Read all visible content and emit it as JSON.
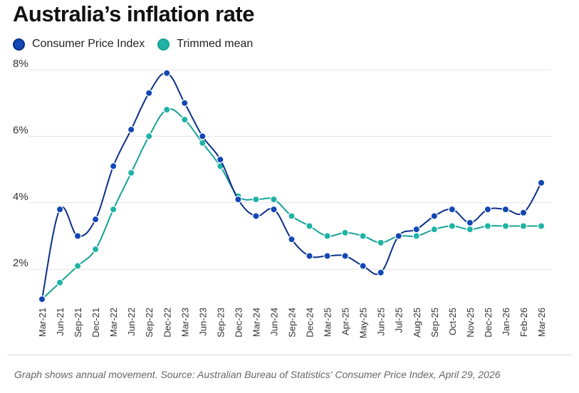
{
  "title": "Australia’s inflation rate",
  "caption": "Graph shows annual movement. Source:  Australian Bureau of Statistics' Consumer Price Index, April 29, 2026",
  "colors": {
    "cpi": "#1247b5",
    "trimmed": "#1fb3a5",
    "cpi_line": "#0b2f8a",
    "trimmed_line": "#16a396",
    "grid": "#e3e3e3"
  },
  "legend": [
    {
      "label": "Consumer Price Index",
      "color": "#1247b5"
    },
    {
      "label": "Trimmed mean",
      "color": "#1fb3a5"
    }
  ],
  "chart_data": {
    "type": "line",
    "title": "Australia’s inflation rate",
    "xlabel": "",
    "ylabel": "",
    "ylim": [
      1,
      8
    ],
    "y_ticks": [
      {
        "value": 2,
        "label": "2%"
      },
      {
        "value": 4,
        "label": "4%"
      },
      {
        "value": 6,
        "label": "6%"
      },
      {
        "value": 8,
        "label": "8%"
      }
    ],
    "grid": true,
    "legend_position": "top-left",
    "categories": [
      "Mar-21",
      "Jun-21",
      "Sep-21",
      "Dec-21",
      "Mar-22",
      "Jun-22",
      "Sep-22",
      "Dec-22",
      "Mar-23",
      "Jun-23",
      "Sep-23",
      "Dec-23",
      "Mar-24",
      "Jun-24",
      "Sep-24",
      "Dec-24",
      "Mar-25",
      "Apr-25",
      "May-25",
      "Jun-25",
      "Jul-25",
      "Aug-25",
      "Sep-25",
      "Oct-25",
      "Nov-25",
      "Dec-25",
      "Jan-26",
      "Feb-26",
      "Mar-26"
    ],
    "series": [
      {
        "name": "Consumer Price Index",
        "values": [
          1.1,
          3.8,
          3.0,
          3.5,
          5.1,
          6.2,
          7.3,
          7.9,
          7.0,
          6.0,
          5.3,
          4.1,
          3.6,
          3.8,
          2.9,
          2.4,
          2.4,
          2.4,
          2.1,
          1.9,
          3.0,
          3.2,
          3.6,
          3.8,
          3.4,
          3.8,
          3.8,
          3.7,
          4.6
        ]
      },
      {
        "name": "Trimmed mean",
        "values": [
          1.1,
          1.6,
          2.1,
          2.6,
          3.8,
          4.9,
          6.0,
          6.8,
          6.5,
          5.8,
          5.1,
          4.2,
          4.1,
          4.1,
          3.6,
          3.3,
          3.0,
          3.1,
          3.0,
          2.8,
          3.0,
          3.0,
          3.2,
          3.3,
          3.2,
          3.3,
          3.3,
          3.3,
          3.3
        ]
      }
    ]
  }
}
